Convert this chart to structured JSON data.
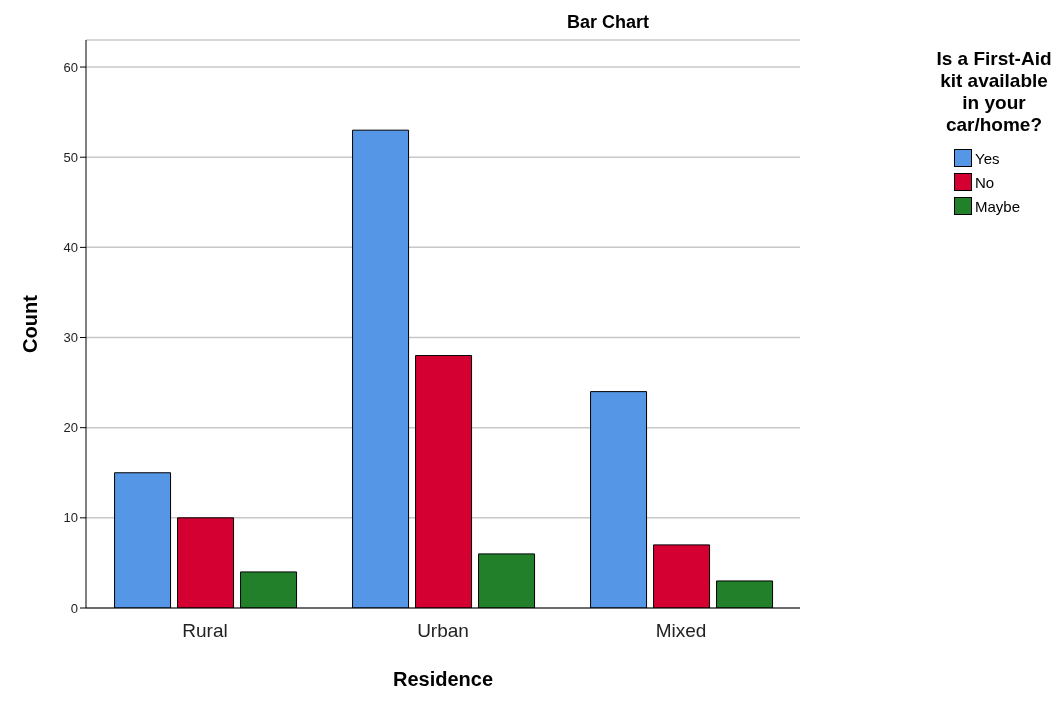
{
  "chart_data": {
    "type": "bar",
    "title": "Bar Chart",
    "xlabel": "Residence",
    "ylabel": "Count",
    "legend_title": "Is a First-Aid kit available in your car/home?",
    "categories": [
      "Rural",
      "Urban",
      "Mixed"
    ],
    "series": [
      {
        "name": "Yes",
        "color": "#5596e6",
        "values": [
          15,
          53,
          24
        ]
      },
      {
        "name": "No",
        "color": "#d50032",
        "values": [
          10,
          28,
          7
        ]
      },
      {
        "name": "Maybe",
        "color": "#22802b",
        "values": [
          4,
          6,
          3
        ]
      }
    ],
    "ylim": [
      0,
      63
    ],
    "yticks": [
      0,
      10,
      20,
      30,
      40,
      50,
      60
    ],
    "grid": "y",
    "legend": "top right"
  }
}
